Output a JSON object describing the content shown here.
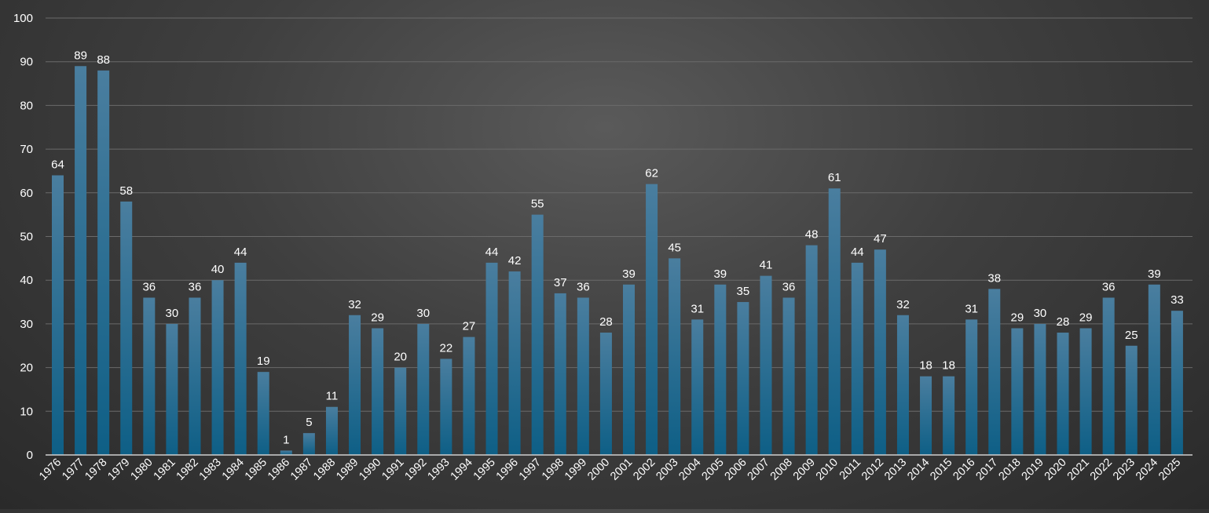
{
  "chart_data": {
    "type": "bar",
    "title": "",
    "xlabel": "",
    "ylabel": "",
    "ylim": [
      0,
      100
    ],
    "yticks": [
      0,
      10,
      20,
      30,
      40,
      50,
      60,
      70,
      80,
      90,
      100
    ],
    "grid": true,
    "categories": [
      "1976",
      "1977",
      "1978",
      "1979",
      "1980",
      "1981",
      "1982",
      "1983",
      "1984",
      "1985",
      "1986",
      "1987",
      "1988",
      "1989",
      "1990",
      "1991",
      "1992",
      "1993",
      "1994",
      "1995",
      "1996",
      "1997",
      "1998",
      "1999",
      "2000",
      "2001",
      "2002",
      "2003",
      "2004",
      "2005",
      "2006",
      "2007",
      "2008",
      "2009",
      "2010",
      "2011",
      "2012",
      "2013",
      "2014",
      "2015",
      "2016",
      "2017",
      "2018",
      "2019",
      "2020",
      "2021",
      "2022",
      "2023",
      "2024",
      "2025"
    ],
    "values": [
      64,
      89,
      88,
      58,
      36,
      30,
      36,
      40,
      44,
      19,
      1,
      5,
      11,
      32,
      29,
      20,
      30,
      22,
      27,
      44,
      42,
      55,
      37,
      36,
      28,
      39,
      62,
      45,
      31,
      39,
      35,
      41,
      36,
      48,
      61,
      44,
      47,
      32,
      18,
      18,
      31,
      38,
      29,
      30,
      28,
      29,
      36,
      25,
      39,
      33
    ],
    "colors": {
      "bar_top": "#4a7e9f",
      "bar_bottom": "#0e5f86",
      "grid": "#6a6a6a",
      "axis": "#d0d0d0",
      "text": "#ffffff"
    }
  }
}
